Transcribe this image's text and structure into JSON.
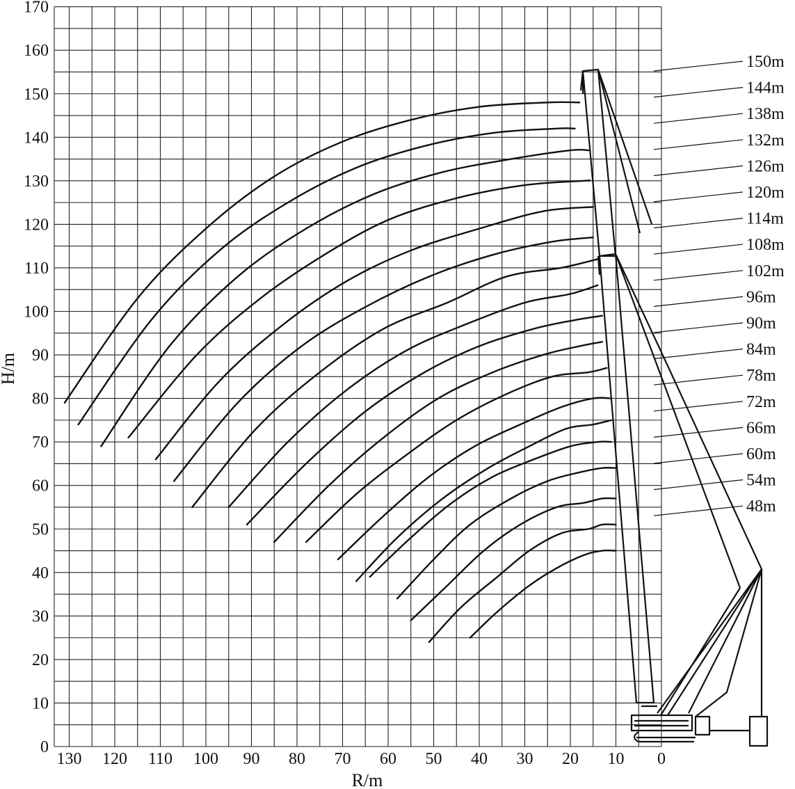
{
  "chart_data": {
    "type": "line",
    "title": "",
    "xlabel": "R/m",
    "ylabel": "H/m",
    "xlim": [
      0,
      135
    ],
    "ylim": [
      0,
      170
    ],
    "x_reversed": true,
    "grid": true,
    "xticks": [
      130,
      120,
      110,
      100,
      90,
      80,
      70,
      60,
      50,
      40,
      30,
      20,
      10,
      0
    ],
    "yticks": [
      0,
      10,
      20,
      30,
      40,
      50,
      60,
      70,
      80,
      90,
      100,
      110,
      120,
      130,
      140,
      150,
      160,
      170
    ],
    "series": [
      {
        "name": "150m",
        "points": [
          [
            131,
            79
          ],
          [
            115,
            103
          ],
          [
            100,
            119
          ],
          [
            85,
            131
          ],
          [
            70,
            139
          ],
          [
            55,
            144
          ],
          [
            40,
            147
          ],
          [
            25,
            148
          ],
          [
            18,
            148
          ]
        ]
      },
      {
        "name": "144m",
        "points": [
          [
            128,
            74
          ],
          [
            112,
            98
          ],
          [
            97,
            114
          ],
          [
            82,
            125
          ],
          [
            67,
            133
          ],
          [
            52,
            138
          ],
          [
            37,
            141
          ],
          [
            23,
            142
          ],
          [
            19,
            142
          ]
        ]
      },
      {
        "name": "138m",
        "points": [
          [
            123,
            69
          ],
          [
            108,
            92
          ],
          [
            93,
            108
          ],
          [
            78,
            119
          ],
          [
            63,
            127
          ],
          [
            48,
            132
          ],
          [
            33,
            135
          ],
          [
            20,
            137
          ],
          [
            16,
            137
          ]
        ]
      },
      {
        "name": "132m",
        "points": [
          [
            117,
            71
          ],
          [
            102,
            90
          ],
          [
            88,
            103
          ],
          [
            74,
            113
          ],
          [
            60,
            121
          ],
          [
            45,
            126
          ],
          [
            30,
            129
          ],
          [
            17,
            130
          ],
          [
            16,
            130
          ]
        ]
      },
      {
        "name": "126m",
        "points": [
          [
            111,
            66
          ],
          [
            97,
            84
          ],
          [
            83,
            97
          ],
          [
            69,
            107
          ],
          [
            55,
            114
          ],
          [
            40,
            119
          ],
          [
            26,
            123
          ],
          [
            15,
            124
          ]
        ]
      },
      {
        "name": "120m",
        "points": [
          [
            107,
            61
          ],
          [
            93,
            79
          ],
          [
            79,
            92
          ],
          [
            65,
            101
          ],
          [
            51,
            108
          ],
          [
            37,
            113
          ],
          [
            24,
            116
          ],
          [
            15,
            117
          ]
        ]
      },
      {
        "name": "114m",
        "points": [
          [
            103,
            55
          ],
          [
            89,
            73
          ],
          [
            75,
            86
          ],
          [
            61,
            96
          ],
          [
            47,
            102
          ],
          [
            34,
            108
          ],
          [
            22,
            110
          ],
          [
            14,
            112
          ]
        ]
      },
      {
        "name": "108m",
        "points": [
          [
            95,
            55
          ],
          [
            82,
            70
          ],
          [
            69,
            82
          ],
          [
            56,
            91
          ],
          [
            43,
            97
          ],
          [
            30,
            102
          ],
          [
            20,
            104
          ],
          [
            14,
            106
          ]
        ]
      },
      {
        "name": "102m",
        "points": [
          [
            91,
            51
          ],
          [
            78,
            65
          ],
          [
            65,
            77
          ],
          [
            52,
            86
          ],
          [
            40,
            92
          ],
          [
            28,
            96
          ],
          [
            19,
            98
          ],
          [
            13,
            99
          ]
        ]
      },
      {
        "name": "96m",
        "points": [
          [
            85,
            47
          ],
          [
            73,
            60
          ],
          [
            61,
            71
          ],
          [
            49,
            80
          ],
          [
            37,
            86
          ],
          [
            26,
            90
          ],
          [
            18,
            92
          ],
          [
            13,
            93
          ]
        ]
      },
      {
        "name": "90m",
        "points": [
          [
            78,
            47
          ],
          [
            67,
            58
          ],
          [
            56,
            67
          ],
          [
            45,
            75
          ],
          [
            34,
            81
          ],
          [
            24,
            85
          ],
          [
            16,
            86
          ],
          [
            12,
            87
          ]
        ]
      },
      {
        "name": "84m",
        "points": [
          [
            71,
            43
          ],
          [
            61,
            53
          ],
          [
            51,
            62
          ],
          [
            41,
            69
          ],
          [
            31,
            74
          ],
          [
            22,
            78
          ],
          [
            15,
            80
          ],
          [
            11,
            80
          ]
        ]
      },
      {
        "name": "78m",
        "points": [
          [
            67,
            38
          ],
          [
            58,
            48
          ],
          [
            48,
            57
          ],
          [
            38,
            64
          ],
          [
            29,
            69
          ],
          [
            21,
            73
          ],
          [
            15,
            74
          ],
          [
            11,
            75
          ]
        ]
      },
      {
        "name": "72m",
        "points": [
          [
            64,
            39
          ],
          [
            55,
            48
          ],
          [
            46,
            56
          ],
          [
            37,
            62
          ],
          [
            28,
            66
          ],
          [
            20,
            69
          ],
          [
            14,
            70
          ],
          [
            11,
            70
          ]
        ]
      },
      {
        "name": "66m",
        "points": [
          [
            58,
            34
          ],
          [
            50,
            43
          ],
          [
            42,
            51
          ],
          [
            33,
            57
          ],
          [
            25,
            61
          ],
          [
            18,
            63
          ],
          [
            13,
            64
          ],
          [
            10,
            64
          ]
        ]
      },
      {
        "name": "60m",
        "points": [
          [
            55,
            29
          ],
          [
            47,
            37
          ],
          [
            39,
            45
          ],
          [
            31,
            51
          ],
          [
            23,
            55
          ],
          [
            17,
            56
          ],
          [
            13,
            57
          ],
          [
            10,
            57
          ]
        ]
      },
      {
        "name": "54m",
        "points": [
          [
            51,
            24
          ],
          [
            44,
            32
          ],
          [
            36,
            39
          ],
          [
            29,
            45
          ],
          [
            22,
            49
          ],
          [
            16,
            50
          ],
          [
            13,
            51
          ],
          [
            10,
            51
          ]
        ]
      },
      {
        "name": "48m",
        "points": [
          [
            42,
            25
          ],
          [
            36,
            31
          ],
          [
            29,
            37
          ],
          [
            23,
            41
          ],
          [
            17,
            44
          ],
          [
            13,
            45
          ],
          [
            10,
            45
          ]
        ]
      }
    ]
  }
}
